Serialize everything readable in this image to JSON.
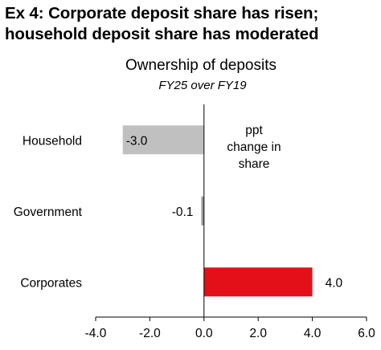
{
  "exhibit": {
    "title_line1": "Ex 4: Corporate deposit share has risen;",
    "title_line2": "household deposit share has moderated"
  },
  "chart_data": {
    "type": "bar",
    "orientation": "horizontal",
    "title": "Ownership of deposits",
    "subtitle": "FY25 over FY19",
    "annotation": [
      "ppt",
      "change in",
      "share"
    ],
    "categories": [
      "Household",
      "Government",
      "Corporates"
    ],
    "values": [
      -3.0,
      -0.1,
      4.0
    ],
    "data_labels": [
      "-3.0",
      "-0.1",
      "4.0"
    ],
    "bar_colors": [
      "#c0c0c0",
      "#9a9a9a",
      "#e3101a"
    ],
    "xlim": [
      -4.0,
      6.0
    ],
    "xticks": [
      -4.0,
      -2.0,
      0.0,
      2.0,
      4.0,
      6.0
    ],
    "xtick_labels": [
      "-4.0",
      "-2.0",
      "0.0",
      "2.0",
      "4.0",
      "6.0"
    ],
    "grid": false,
    "legend": "none"
  }
}
